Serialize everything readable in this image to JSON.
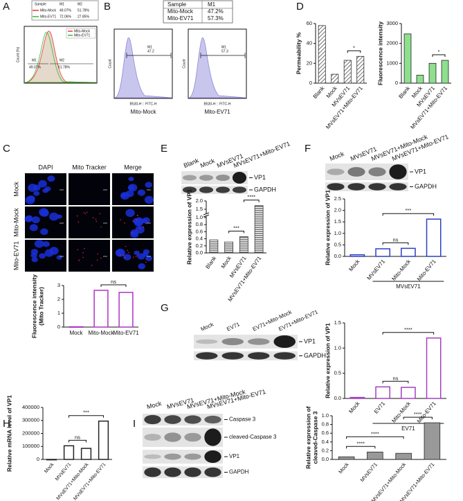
{
  "figure": {
    "panel_labels": [
      "A",
      "B",
      "C",
      "D",
      "E",
      "F",
      "G",
      "H",
      "I"
    ],
    "A": {
      "table": [
        [
          "Sample",
          "M1",
          "M2"
        ],
        [
          "Mito-Mock",
          "49.07%",
          "51.78%"
        ],
        [
          "Mito-EV71",
          "72.06%",
          "27.85%"
        ]
      ],
      "legend": [
        "Mito-Mock",
        "Mito-EV71"
      ],
      "gates": [
        "M1",
        "M2"
      ],
      "gate_values": [
        "49.07%",
        "51.78%"
      ],
      "y_label": "Count (%)"
    },
    "B": {
      "table": [
        [
          "Sample",
          "M1"
        ],
        [
          "Mito-Mock",
          "47.2%"
        ],
        [
          "Mito-EV71",
          "57.3%"
        ]
      ],
      "plots": [
        {
          "gate": "M1",
          "value": "47.2",
          "x_label": "B530-H :: FITC-H",
          "y_label": "Count",
          "title": "Mito-Mock"
        },
        {
          "gate": "M1",
          "value": "57.3",
          "x_label": "B530-H :: FITC-H",
          "y_label": "Count",
          "title": "Mito-EV71"
        }
      ]
    },
    "C": {
      "columns": [
        "DAPI",
        "Mito Tracker",
        "Merge"
      ],
      "rows": [
        "Mock",
        "Mito-Mock",
        "Mito-EV71"
      ]
    },
    "E": {
      "lanes": [
        "Blank",
        "Mock",
        "MVsEV71",
        "MVsEV71+Mito-EV71"
      ],
      "bands": [
        "VP1",
        "GAPDH"
      ]
    },
    "F": {
      "lanes": [
        "Mock",
        "MVsEV71",
        "MVsEV71+Mito-Mock",
        "MVsEV71+Mito-EV71"
      ],
      "bands": [
        "VP1",
        "GAPDH"
      ]
    },
    "G": {
      "lanes": [
        "Mock",
        "EV71",
        "EV71+Mito-Mock",
        "EV71+Mito-EV71"
      ],
      "bands": [
        "VP1",
        "GAPDH"
      ]
    },
    "I": {
      "lanes": [
        "Mock",
        "MVsEV71",
        "MVsEV71+Mito-Mock",
        "MVsEV71+Mito-EV71"
      ],
      "bands": [
        "Caspase 3",
        "cleaved-Caspase 3",
        "VP1",
        "GAPDH"
      ]
    }
  },
  "chart_data": [
    {
      "type": "bar",
      "y_label": [
        "Fluorescence intensity",
        "(Mito Tracker)"
      ],
      "categories": [
        "Mock",
        "Mito-Mock",
        "Mito-EV71"
      ],
      "values": [
        0.02,
        2.65,
        2.5
      ],
      "color": "#b030c8",
      "outline": true,
      "ylim": [
        0,
        3
      ],
      "yticks": [
        0,
        1,
        2,
        3
      ],
      "annotations": [
        "ns"
      ]
    },
    {
      "type": "bar",
      "y_label": "Permeability %",
      "categories": [
        "Blank",
        "Mock",
        "MVsEV71",
        "MVsEV71+Mito-EV71"
      ],
      "values": [
        58,
        9,
        23,
        27
      ],
      "color": "#333333",
      "hatch": "diagonal",
      "ylim": [
        0,
        60
      ],
      "yticks": [
        0,
        20,
        40,
        60
      ],
      "annotations": [
        "*"
      ]
    },
    {
      "type": "bar",
      "y_label": "Fluorescence intensity",
      "categories": [
        "Blank",
        "Mock",
        "MVsEV71",
        "MVsEV71+Mito-EV71"
      ],
      "values": [
        2480,
        400,
        1000,
        1150
      ],
      "color": "#8ee08e",
      "ylim": [
        0,
        3000
      ],
      "yticks": [
        0,
        1000,
        2000,
        3000
      ],
      "annotations": [
        "*"
      ]
    },
    {
      "type": "bar",
      "y_label": "Relative expression of VP1",
      "categories": [
        "Blank",
        "Mock",
        "MVsEV71",
        "MVsEV71+Mito-EV71"
      ],
      "values": [
        0.37,
        0.31,
        0.46,
        1.72
      ],
      "color": "#333333",
      "hatch": "horizontal",
      "ylim": [
        0,
        2
      ],
      "axis_break": 1,
      "yticks": [
        {
          "value": 0,
          "label": "0.0"
        },
        {
          "value": 0.2,
          "label": "0.2"
        },
        {
          "value": 0.4,
          "label": "0.4"
        },
        {
          "value": 0.6,
          "label": "0.6"
        },
        {
          "value": 0.8,
          "label": "0.8"
        },
        {
          "value": 1,
          "label": "1.0"
        },
        {
          "value": 1.5,
          "label": "1.5"
        },
        {
          "value": 2,
          "label": "2.0"
        }
      ],
      "annotations": [
        "***",
        "****"
      ]
    },
    {
      "type": "bar",
      "y_label": "Relative expression of VP1",
      "categories": [
        "Mock",
        "MVsEV71",
        "Mito-Mock",
        "Mito-EV71"
      ],
      "group_label": "MVsEV71",
      "values": [
        0.07,
        0.33,
        0.35,
        1.62
      ],
      "color": "#2a3fbf",
      "outline": true,
      "ylim": [
        0,
        2.5
      ],
      "yticks": [
        {
          "value": 0,
          "label": "0.0"
        },
        {
          "value": 0.5,
          "label": "0.5"
        },
        {
          "value": 1,
          "label": "1.0"
        },
        {
          "value": 1.5,
          "label": "1.5"
        },
        {
          "value": 2,
          "label": "2.0"
        },
        {
          "value": 2.5,
          "label": "2.5"
        }
      ],
      "annotations": [
        "ns",
        "***"
      ]
    },
    {
      "type": "bar",
      "y_label": "Relative expression of VP1",
      "categories": [
        "Mock",
        "EV71",
        "Mito-Mock",
        "Mito-EV71"
      ],
      "group_label": "EV71",
      "values": [
        0.02,
        0.23,
        0.22,
        1.2
      ],
      "color": "#a040c0",
      "outline": true,
      "ylim": [
        0,
        1.5
      ],
      "yticks": [
        {
          "value": 0,
          "label": "0.0"
        },
        {
          "value": 0.5,
          "label": "0.5"
        },
        {
          "value": 1,
          "label": "1.0"
        },
        {
          "value": 1.5,
          "label": "1.5"
        }
      ],
      "annotations": [
        "ns",
        "****"
      ]
    },
    {
      "type": "bar",
      "y_label": "Relative mRNA level of VP1",
      "categories": [
        "Mock",
        "MVsEV71",
        "MVsEV71+Mito-Mock",
        "MVsEV71+Mito-EV71"
      ],
      "values": [
        0,
        105000,
        85000,
        295000
      ],
      "color": "#222222",
      "outline": true,
      "ylim": [
        0,
        400000
      ],
      "yticks": [
        0,
        100000,
        200000,
        300000,
        400000
      ],
      "annotations": [
        "ns",
        "***"
      ]
    },
    {
      "type": "bar",
      "y_label": [
        "Relative expression of",
        "cleaved-Caspase 3"
      ],
      "categories": [
        "Mock",
        "MVsEV71",
        "MVsEV71+Mito-Mock",
        "MVsEV71+Mito-EV71"
      ],
      "values": [
        0.06,
        0.17,
        0.14,
        0.84
      ],
      "color": "#999999",
      "ylim": [
        0,
        1
      ],
      "yticks": [
        {
          "value": 0,
          "label": "0.0"
        },
        {
          "value": 0.2,
          "label": "0.2"
        },
        {
          "value": 0.4,
          "label": "0.4"
        },
        {
          "value": 0.6,
          "label": "0.6"
        },
        {
          "value": 0.8,
          "label": "0.8"
        },
        {
          "value": 1,
          "label": "1.0"
        }
      ],
      "annotations": [
        "****",
        "****",
        "****"
      ]
    }
  ]
}
